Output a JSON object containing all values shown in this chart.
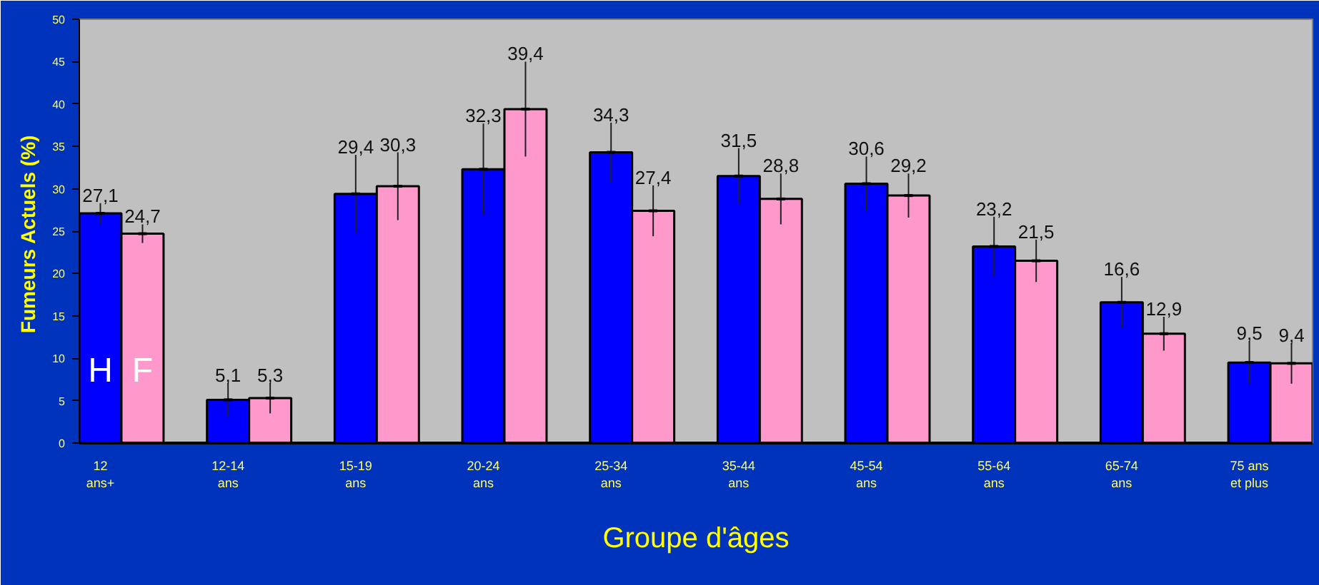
{
  "chart_data": {
    "type": "bar",
    "xlabel": "Groupe d'âges",
    "ylabel": "Fumeurs Actuels  (%)",
    "categories": [
      "12\nans+",
      "12-14\nans",
      "15-19\nans",
      "20-24\nans",
      "25-34\nans",
      "35-44\nans",
      "45-54\nans",
      "55-64\nans",
      "65-74\nans",
      "75 ans\net plus"
    ],
    "ylim": [
      0,
      50
    ],
    "yticks": [
      0,
      5,
      10,
      15,
      20,
      25,
      30,
      35,
      40,
      45,
      50
    ],
    "grid": false,
    "series": [
      {
        "name": "H",
        "color": "#0000ff",
        "values": [
          27.1,
          5.1,
          29.4,
          32.3,
          34.3,
          31.5,
          30.6,
          23.2,
          16.6,
          9.5
        ],
        "errors": [
          1.2,
          2,
          4.6,
          5.4,
          3.5,
          3.3,
          3.2,
          3.5,
          3,
          2.5
        ],
        "value_labels": [
          "27,1",
          "5,1",
          "29,4",
          "32,3",
          "34,3",
          "31,5",
          "30,6",
          "23,2",
          "16,6",
          "9,5"
        ]
      },
      {
        "name": "F",
        "color": "#ff99cc",
        "values": [
          24.7,
          5.3,
          30.3,
          39.4,
          27.4,
          28.8,
          29.2,
          21.5,
          12.9,
          9.4
        ],
        "errors": [
          1.1,
          1.8,
          4,
          5.6,
          3,
          3,
          2.6,
          2.5,
          2,
          2.4
        ],
        "value_labels": [
          "24,7",
          "5,3",
          "30,3",
          "39,4",
          "27,4",
          "28,8",
          "29,2",
          "21,5",
          "12,9",
          "9,4"
        ]
      }
    ]
  }
}
